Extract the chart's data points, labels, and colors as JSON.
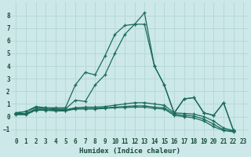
{
  "xlabel": "Humidex (Indice chaleur)",
  "bg_color": "#cce8e8",
  "grid_color": "#b8d8d8",
  "line_color": "#1a6b5a",
  "xlim": [
    -0.5,
    23.5
  ],
  "ylim": [
    -1.6,
    9.0
  ],
  "yticks": [
    -1,
    0,
    1,
    2,
    3,
    4,
    5,
    6,
    7,
    8
  ],
  "xticks": [
    0,
    1,
    2,
    3,
    4,
    5,
    6,
    7,
    8,
    9,
    10,
    11,
    12,
    13,
    14,
    15,
    16,
    17,
    18,
    19,
    20,
    21,
    22,
    23
  ],
  "series": [
    {
      "x": [
        0,
        1,
        2,
        3,
        4,
        5,
        6,
        7,
        8,
        9,
        10,
        11,
        12,
        13,
        14,
        15,
        16,
        17,
        18,
        19,
        20,
        21,
        22
      ],
      "y": [
        0.3,
        0.4,
        0.8,
        0.7,
        0.7,
        0.7,
        2.5,
        3.5,
        3.3,
        4.8,
        6.5,
        7.2,
        7.3,
        8.2,
        4.0,
        2.5,
        0.3,
        1.4,
        1.5,
        0.3,
        0.1,
        1.1,
        -1.1
      ]
    },
    {
      "x": [
        0,
        1,
        2,
        3,
        4,
        5,
        6,
        7,
        8,
        9,
        10,
        11,
        12,
        13,
        14,
        15,
        16,
        17,
        18,
        19,
        20,
        21,
        22
      ],
      "y": [
        0.3,
        0.4,
        0.7,
        0.7,
        0.6,
        0.6,
        1.3,
        1.2,
        2.5,
        3.3,
        5.0,
        6.5,
        7.3,
        7.3,
        4.0,
        2.5,
        0.25,
        1.4,
        1.5,
        0.3,
        0.1,
        1.1,
        -1.1
      ]
    },
    {
      "x": [
        0,
        1,
        2,
        3,
        4,
        5,
        6,
        7,
        8,
        9,
        10,
        11,
        12,
        13,
        14,
        15,
        16,
        17,
        18,
        19,
        20,
        21,
        22
      ],
      "y": [
        0.25,
        0.25,
        0.6,
        0.6,
        0.55,
        0.55,
        0.7,
        0.75,
        0.75,
        0.8,
        0.9,
        1.0,
        1.1,
        1.1,
        1.0,
        0.9,
        0.3,
        0.25,
        0.2,
        0.0,
        -0.35,
        -0.9,
        -1.1
      ]
    },
    {
      "x": [
        0,
        1,
        2,
        3,
        4,
        5,
        6,
        7,
        8,
        9,
        10,
        11,
        12,
        13,
        14,
        15,
        16,
        17,
        18,
        19,
        20,
        21,
        22
      ],
      "y": [
        0.2,
        0.2,
        0.55,
        0.55,
        0.5,
        0.5,
        0.65,
        0.65,
        0.65,
        0.7,
        0.75,
        0.8,
        0.85,
        0.85,
        0.75,
        0.7,
        0.2,
        0.1,
        0.05,
        -0.2,
        -0.6,
        -1.05,
        -1.15
      ]
    },
    {
      "x": [
        0,
        1,
        2,
        3,
        4,
        5,
        6,
        7,
        8,
        9,
        10,
        11,
        12,
        13,
        14,
        15,
        16,
        17,
        18,
        19,
        20,
        21,
        22
      ],
      "y": [
        0.15,
        0.15,
        0.5,
        0.5,
        0.45,
        0.45,
        0.6,
        0.6,
        0.6,
        0.65,
        0.7,
        0.72,
        0.75,
        0.75,
        0.65,
        0.6,
        0.1,
        0.0,
        -0.1,
        -0.35,
        -0.8,
        -1.1,
        -1.2
      ]
    }
  ]
}
